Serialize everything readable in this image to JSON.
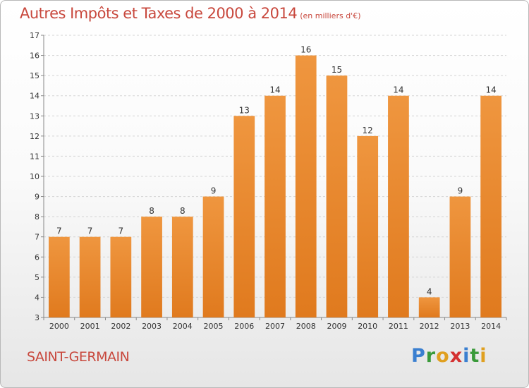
{
  "title": "Autres Impôts et Taxes de 2000 à 2014",
  "title_unit": "(en milliers d'€)",
  "commune": "SAINT-GERMAIN",
  "logo": {
    "text": "Proxiti",
    "letters": [
      "P",
      "r",
      "o",
      "x",
      "i",
      "t",
      "i"
    ],
    "colors": [
      "#3a7fd0",
      "#3a9a3a",
      "#e0a020",
      "#d43030",
      "#3a7fd0",
      "#3a9a3a",
      "#e0a020"
    ]
  },
  "chart_data": {
    "type": "bar",
    "categories": [
      "2000",
      "2001",
      "2002",
      "2003",
      "2004",
      "2005",
      "2006",
      "2007",
      "2008",
      "2009",
      "2010",
      "2011",
      "2012",
      "2013",
      "2014"
    ],
    "values": [
      7,
      7,
      7,
      8,
      8,
      9,
      13,
      14,
      16,
      15,
      12,
      14,
      4,
      9,
      14
    ],
    "data_labels": [
      "7",
      "7",
      "7",
      "8",
      "8",
      "9",
      "13",
      "14",
      "16",
      "15",
      "12",
      "14",
      "4",
      "9",
      "14"
    ],
    "yticks": [
      "3",
      "4",
      "5",
      "6",
      "7",
      "8",
      "9",
      "10",
      "11",
      "12",
      "13",
      "14",
      "15",
      "16",
      "17"
    ],
    "ylim": [
      3,
      17
    ],
    "grid": true,
    "bar_color": "#ef963f",
    "bar_color_dark": "#e07a1e"
  }
}
